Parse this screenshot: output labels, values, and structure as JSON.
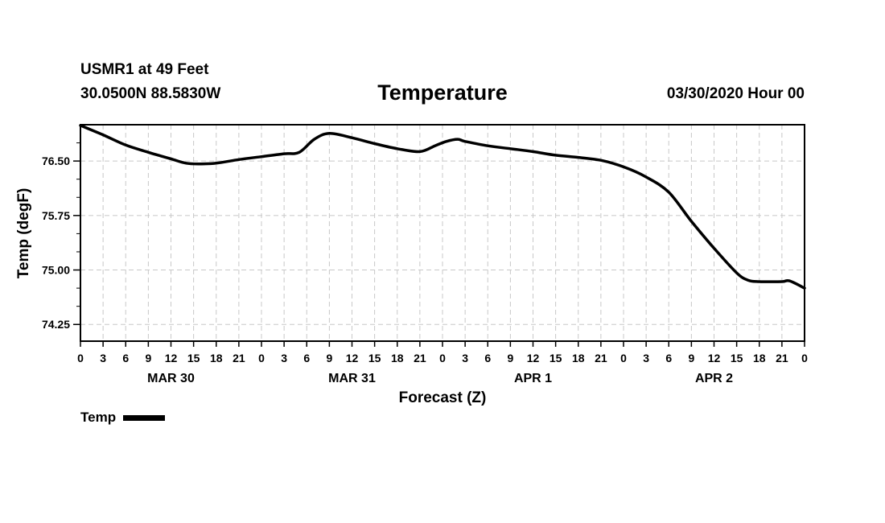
{
  "header": {
    "station": "USMR1 at 49 Feet",
    "coords": "30.0500N 88.5830W",
    "title": "Temperature",
    "datetime": "03/30/2020 Hour 00"
  },
  "chart_data": {
    "type": "line",
    "title": "Temperature",
    "xlabel": "Forecast (Z)",
    "ylabel": "Temp (degF)",
    "xlim": [
      0,
      96
    ],
    "ylim": [
      74.02,
      77.0
    ],
    "yticks": [
      74.25,
      75.0,
      75.75,
      76.5
    ],
    "ytick_labels": [
      "74.25",
      "75.00",
      "75.75",
      "76.50"
    ],
    "xticks": [
      0,
      3,
      6,
      9,
      12,
      15,
      18,
      21,
      24,
      27,
      30,
      33,
      36,
      39,
      42,
      45,
      48,
      51,
      54,
      57,
      60,
      63,
      66,
      69,
      72,
      75,
      78,
      81,
      84,
      87,
      90,
      93,
      96
    ],
    "xtick_labels": [
      "0",
      "3",
      "6",
      "9",
      "12",
      "15",
      "18",
      "21",
      "0",
      "3",
      "6",
      "9",
      "12",
      "15",
      "18",
      "21",
      "0",
      "3",
      "6",
      "9",
      "12",
      "15",
      "18",
      "21",
      "0",
      "3",
      "6",
      "9",
      "12",
      "15",
      "18",
      "21",
      "0"
    ],
    "day_labels": [
      {
        "x": 12,
        "label": "MAR 30"
      },
      {
        "x": 36,
        "label": "MAR 31"
      },
      {
        "x": 60,
        "label": "APR 1"
      },
      {
        "x": 84,
        "label": "APR 2"
      }
    ],
    "grid": true,
    "series": [
      {
        "name": "Temp",
        "color": "#000000",
        "x": [
          0,
          3,
          6,
          9,
          12,
          14,
          16,
          18,
          21,
          24,
          27,
          29,
          31,
          33,
          36,
          39,
          42,
          45,
          47,
          48.5,
          50,
          51,
          54,
          57,
          60,
          63,
          66,
          69,
          72,
          75,
          78,
          81,
          84,
          87,
          88.5,
          90,
          93,
          94,
          96
        ],
        "y": [
          76.99,
          76.86,
          76.72,
          76.62,
          76.53,
          76.47,
          76.46,
          76.47,
          76.52,
          76.56,
          76.6,
          76.62,
          76.8,
          76.88,
          76.82,
          76.74,
          76.67,
          76.63,
          76.71,
          76.77,
          76.8,
          76.77,
          76.71,
          76.67,
          76.63,
          76.58,
          76.55,
          76.51,
          76.42,
          76.28,
          76.07,
          75.67,
          75.3,
          74.96,
          74.86,
          74.84,
          74.84,
          74.85,
          74.75
        ]
      }
    ]
  },
  "legend": {
    "label": "Temp"
  }
}
